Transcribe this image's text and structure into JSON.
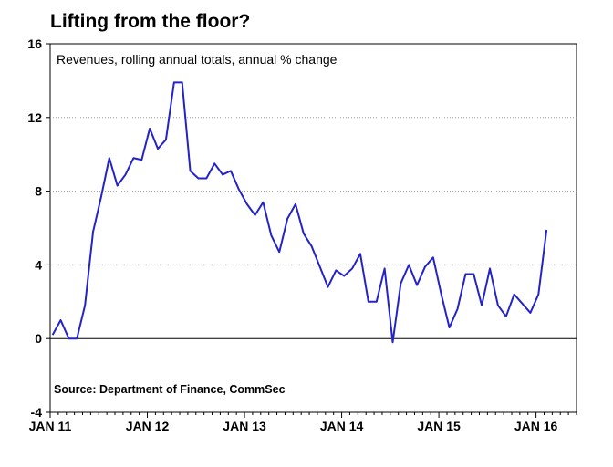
{
  "title": "Lifting from the floor?",
  "chart_data": {
    "type": "line",
    "title": "Lifting from the floor?",
    "subtitle": "Revenues, rolling annual totals, annual % change",
    "source": "Source: Department of Finance, CommSec",
    "ylim": [
      -4,
      16
    ],
    "yticks": [
      -4,
      0,
      4,
      8,
      12,
      16
    ],
    "xtick_labels": [
      "JAN 11",
      "JAN 12",
      "JAN 13",
      "JAN 14",
      "JAN 15",
      "JAN 16"
    ],
    "x_start": "2011-01",
    "grid": true,
    "series_color": "#2323c8",
    "series": [
      {
        "values": [
          0.2,
          1.0,
          0.0,
          0.0,
          1.8,
          5.8,
          7.7,
          9.8,
          8.3,
          8.9,
          9.8,
          9.7,
          11.4,
          10.3,
          10.8,
          13.9,
          13.9,
          9.1,
          8.7,
          8.7,
          9.5,
          8.9,
          9.1,
          8.1,
          7.3,
          6.7,
          7.4,
          5.6,
          4.7,
          6.5,
          7.3,
          5.7,
          5.0,
          3.9,
          2.8,
          3.7,
          3.4,
          3.8,
          4.6,
          2.0,
          2.0,
          3.8,
          -0.2,
          3.0,
          4.0,
          2.9,
          3.9,
          4.4,
          2.4,
          0.6,
          1.6,
          3.5,
          3.5,
          1.8,
          3.8,
          1.8,
          1.2,
          2.4,
          1.9,
          1.4,
          2.4,
          5.9
        ]
      }
    ]
  }
}
